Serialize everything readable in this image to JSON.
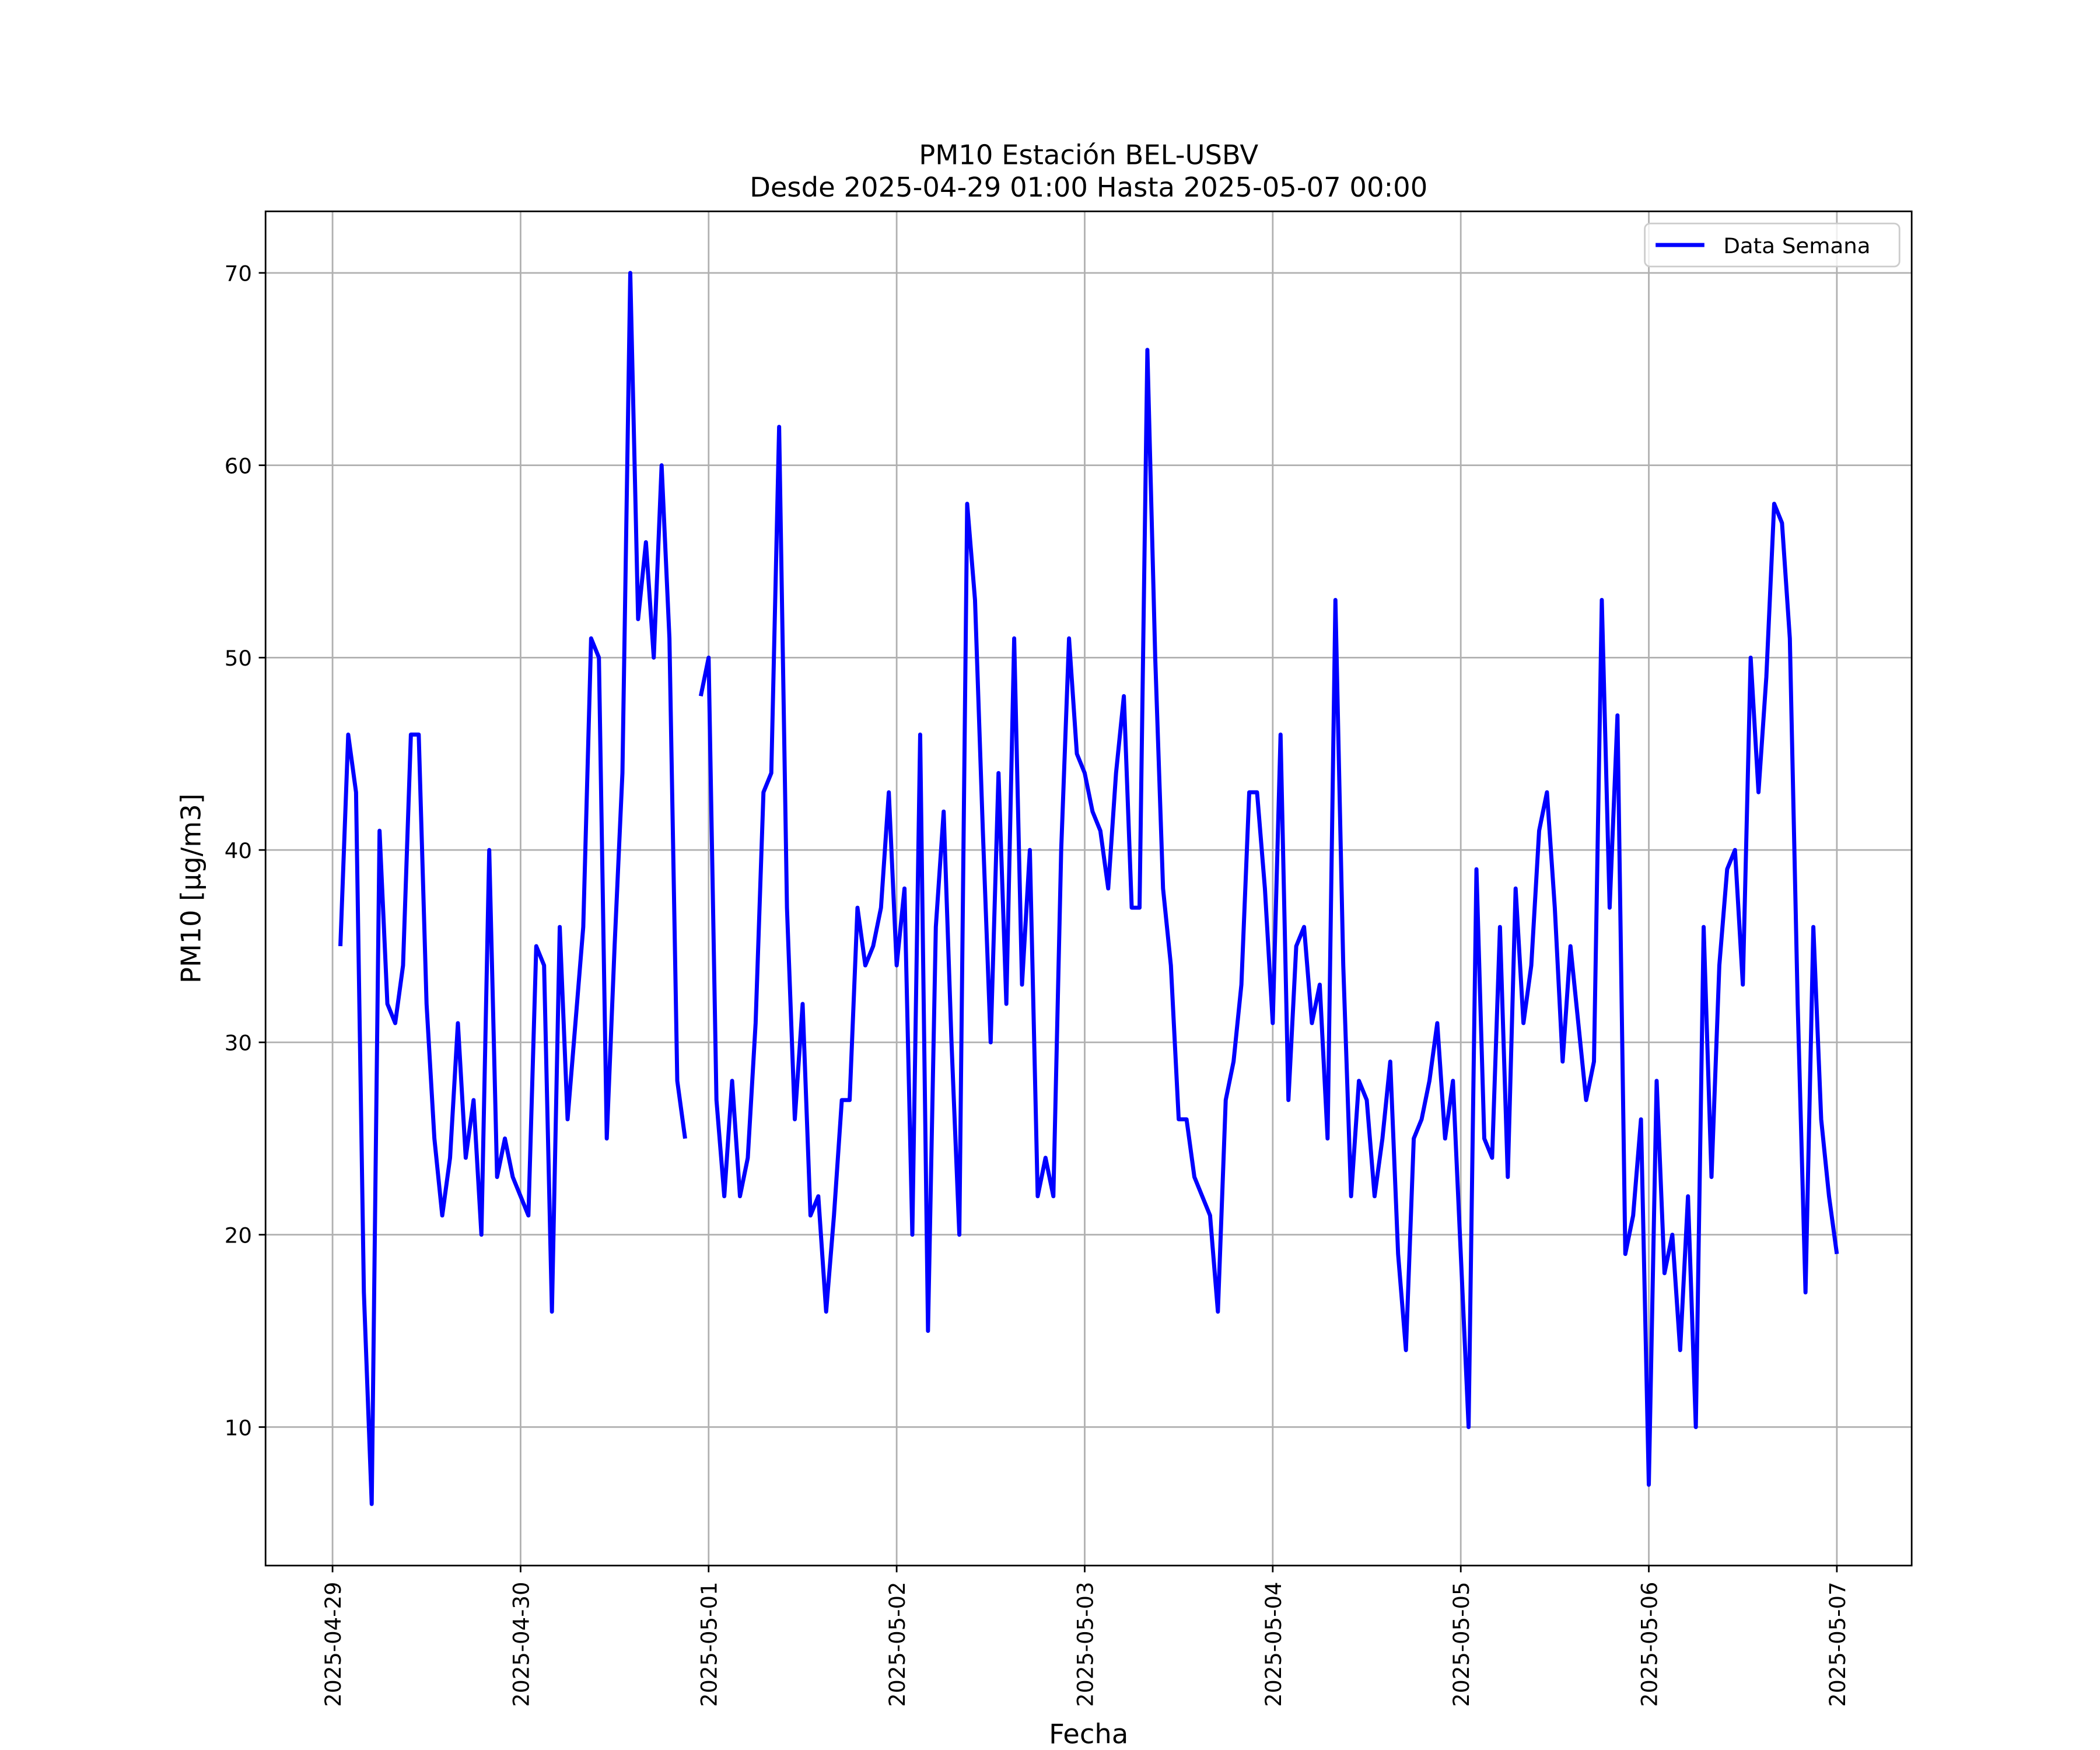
{
  "chart_data": {
    "type": "line",
    "title": "PM10 Estación BEL-USBV",
    "subtitle": "Desde 2025-04-29 01:00 Hasta 2025-05-07 00:00",
    "x_label": "Fecha",
    "y_label": "PM10 [μg/m3]",
    "x": [
      "2025-04-29 01:00",
      "2025-04-29 02:00",
      "2025-04-29 03:00",
      "2025-04-29 04:00",
      "2025-04-29 05:00",
      "2025-04-29 06:00",
      "2025-04-29 07:00",
      "2025-04-29 08:00",
      "2025-04-29 09:00",
      "2025-04-29 10:00",
      "2025-04-29 11:00",
      "2025-04-29 12:00",
      "2025-04-29 13:00",
      "2025-04-29 14:00",
      "2025-04-29 15:00",
      "2025-04-29 16:00",
      "2025-04-29 17:00",
      "2025-04-29 18:00",
      "2025-04-29 19:00",
      "2025-04-29 20:00",
      "2025-04-29 21:00",
      "2025-04-29 22:00",
      "2025-04-29 23:00",
      "2025-04-30 00:00",
      "2025-04-30 01:00",
      "2025-04-30 02:00",
      "2025-04-30 03:00",
      "2025-04-30 04:00",
      "2025-04-30 05:00",
      "2025-04-30 06:00",
      "2025-04-30 07:00",
      "2025-04-30 08:00",
      "2025-04-30 09:00",
      "2025-04-30 10:00",
      "2025-04-30 11:00",
      "2025-04-30 12:00",
      "2025-04-30 13:00",
      "2025-04-30 14:00",
      "2025-04-30 15:00",
      "2025-04-30 16:00",
      "2025-04-30 17:00",
      "2025-04-30 18:00",
      "2025-04-30 19:00",
      "2025-04-30 20:00",
      "2025-04-30 21:00",
      "2025-04-30 22:00",
      "2025-04-30 23:00",
      "2025-05-01 00:00",
      "2025-05-01 01:00",
      "2025-05-01 02:00",
      "2025-05-01 03:00",
      "2025-05-01 04:00",
      "2025-05-01 05:00",
      "2025-05-01 06:00",
      "2025-05-01 07:00",
      "2025-05-01 08:00",
      "2025-05-01 09:00",
      "2025-05-01 10:00",
      "2025-05-01 11:00",
      "2025-05-01 12:00",
      "2025-05-01 13:00",
      "2025-05-01 14:00",
      "2025-05-01 15:00",
      "2025-05-01 16:00",
      "2025-05-01 17:00",
      "2025-05-01 18:00",
      "2025-05-01 19:00",
      "2025-05-01 20:00",
      "2025-05-01 21:00",
      "2025-05-01 22:00",
      "2025-05-01 23:00",
      "2025-05-02 00:00",
      "2025-05-02 01:00",
      "2025-05-02 02:00",
      "2025-05-02 03:00",
      "2025-05-02 04:00",
      "2025-05-02 05:00",
      "2025-05-02 06:00",
      "2025-05-02 07:00",
      "2025-05-02 08:00",
      "2025-05-02 09:00",
      "2025-05-02 10:00",
      "2025-05-02 11:00",
      "2025-05-02 12:00",
      "2025-05-02 13:00",
      "2025-05-02 14:00",
      "2025-05-02 15:00",
      "2025-05-02 16:00",
      "2025-05-02 17:00",
      "2025-05-02 18:00",
      "2025-05-02 19:00",
      "2025-05-02 20:00",
      "2025-05-02 21:00",
      "2025-05-02 22:00",
      "2025-05-02 23:00",
      "2025-05-03 00:00",
      "2025-05-03 01:00",
      "2025-05-03 02:00",
      "2025-05-03 03:00",
      "2025-05-03 04:00",
      "2025-05-03 05:00",
      "2025-05-03 06:00",
      "2025-05-03 07:00",
      "2025-05-03 08:00",
      "2025-05-03 09:00",
      "2025-05-03 10:00",
      "2025-05-03 11:00",
      "2025-05-03 12:00",
      "2025-05-03 13:00",
      "2025-05-03 14:00",
      "2025-05-03 15:00",
      "2025-05-03 16:00",
      "2025-05-03 17:00",
      "2025-05-03 18:00",
      "2025-05-03 19:00",
      "2025-05-03 20:00",
      "2025-05-03 21:00",
      "2025-05-03 22:00",
      "2025-05-03 23:00",
      "2025-05-04 00:00",
      "2025-05-04 01:00",
      "2025-05-04 02:00",
      "2025-05-04 03:00",
      "2025-05-04 04:00",
      "2025-05-04 05:00",
      "2025-05-04 06:00",
      "2025-05-04 07:00",
      "2025-05-04 08:00",
      "2025-05-04 09:00",
      "2025-05-04 10:00",
      "2025-05-04 11:00",
      "2025-05-04 12:00",
      "2025-05-04 13:00",
      "2025-05-04 14:00",
      "2025-05-04 15:00",
      "2025-05-04 16:00",
      "2025-05-04 17:00",
      "2025-05-04 18:00",
      "2025-05-04 19:00",
      "2025-05-04 20:00",
      "2025-05-04 21:00",
      "2025-05-04 22:00",
      "2025-05-04 23:00",
      "2025-05-05 00:00",
      "2025-05-05 01:00",
      "2025-05-05 02:00",
      "2025-05-05 03:00",
      "2025-05-05 04:00",
      "2025-05-05 05:00",
      "2025-05-05 06:00",
      "2025-05-05 07:00",
      "2025-05-05 08:00",
      "2025-05-05 09:00",
      "2025-05-05 10:00",
      "2025-05-05 11:00",
      "2025-05-05 12:00",
      "2025-05-05 13:00",
      "2025-05-05 14:00",
      "2025-05-05 15:00",
      "2025-05-05 16:00",
      "2025-05-05 17:00",
      "2025-05-05 18:00",
      "2025-05-05 19:00",
      "2025-05-05 20:00",
      "2025-05-05 21:00",
      "2025-05-05 22:00",
      "2025-05-05 23:00",
      "2025-05-06 00:00",
      "2025-05-06 01:00",
      "2025-05-06 02:00",
      "2025-05-06 03:00",
      "2025-05-06 04:00",
      "2025-05-06 05:00",
      "2025-05-06 06:00",
      "2025-05-06 07:00",
      "2025-05-06 08:00",
      "2025-05-06 09:00",
      "2025-05-06 10:00",
      "2025-05-06 11:00",
      "2025-05-06 12:00",
      "2025-05-06 13:00",
      "2025-05-06 14:00",
      "2025-05-06 15:00",
      "2025-05-06 16:00",
      "2025-05-06 17:00",
      "2025-05-06 18:00",
      "2025-05-06 19:00",
      "2025-05-06 20:00",
      "2025-05-06 21:00",
      "2025-05-06 22:00",
      "2025-05-06 23:00",
      "2025-05-07 00:00"
    ],
    "series": [
      {
        "name": "Data Semana",
        "color": "#0000ff",
        "values": [
          35,
          46,
          43,
          17,
          6,
          41,
          32,
          31,
          34,
          46,
          46,
          32,
          25,
          21,
          24,
          31,
          24,
          27,
          20,
          40,
          23,
          25,
          23,
          22,
          21,
          35,
          34,
          16,
          36,
          26,
          31,
          36,
          51,
          50,
          25,
          35,
          44,
          70,
          52,
          56,
          50,
          60,
          51,
          28,
          25,
          null,
          48,
          50,
          27,
          22,
          28,
          22,
          24,
          31,
          43,
          44,
          62,
          37,
          26,
          32,
          21,
          22,
          16,
          21,
          27,
          27,
          37,
          34,
          35,
          37,
          43,
          34,
          38,
          20,
          46,
          15,
          36,
          42,
          30,
          20,
          58,
          53,
          41,
          30,
          44,
          32,
          51,
          33,
          40,
          22,
          24,
          22,
          40,
          51,
          45,
          44,
          42,
          41,
          38,
          44,
          48,
          37,
          37,
          66,
          50,
          38,
          34,
          26,
          26,
          23,
          22,
          21,
          16,
          27,
          29,
          33,
          43,
          43,
          38,
          31,
          46,
          27,
          35,
          36,
          31,
          33,
          25,
          53,
          34,
          22,
          28,
          27,
          22,
          25,
          29,
          19,
          14,
          25,
          26,
          28,
          31,
          25,
          28,
          19,
          10,
          39,
          25,
          24,
          36,
          23,
          38,
          31,
          34,
          41,
          43,
          37,
          29,
          35,
          31,
          27,
          29,
          53,
          37,
          47,
          19,
          21,
          26,
          7,
          28,
          18,
          20,
          14,
          22,
          10,
          36,
          23,
          34,
          39,
          40,
          33,
          50,
          43,
          49,
          58,
          57,
          51,
          32,
          17,
          36,
          26,
          22,
          19
        ]
      }
    ],
    "xlim": [
      "2025-04-28 15:27",
      "2025-05-07 09:33"
    ],
    "xticks": [
      "2025-04-29",
      "2025-04-30",
      "2025-05-01",
      "2025-05-02",
      "2025-05-03",
      "2025-05-04",
      "2025-05-05",
      "2025-05-06",
      "2025-05-07"
    ],
    "ylim": [
      2.8,
      73.2
    ],
    "yticks": [
      10,
      20,
      30,
      40,
      50,
      60,
      70
    ],
    "grid": true,
    "legend": "upper right"
  }
}
